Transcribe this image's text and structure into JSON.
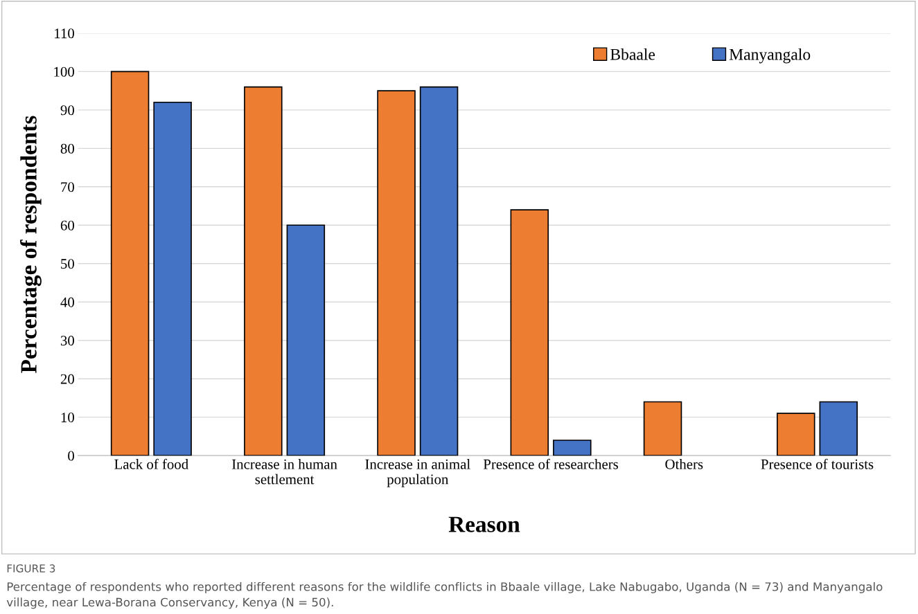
{
  "chart_data": {
    "type": "bar",
    "xlabel": "Reason",
    "ylabel": "Percentage of respondents",
    "categories": [
      "Lack of food",
      "Increase in human\nsettlement",
      "Increase in animal\npopulation",
      "Presence of researchers",
      "Others",
      "Presence of tourists"
    ],
    "series": [
      {
        "name": "Bbaale",
        "color": "#ed7d31",
        "values": [
          100,
          96,
          95,
          64,
          14,
          11
        ]
      },
      {
        "name": "Manyangalo",
        "color": "#4472c4",
        "values": [
          92,
          60,
          96,
          4,
          null,
          14
        ]
      }
    ],
    "ylim": [
      0,
      110
    ],
    "yticks": [
      0,
      10,
      20,
      30,
      40,
      50,
      60,
      70,
      80,
      90,
      100,
      110
    ],
    "grid": "y",
    "legend": "top right",
    "annotations": [
      "FIGURE 3",
      "Percentage of respondents who reported different reasons for the wildlife conflicts in Bbaale village, Lake Nabugabo, Uganda (N = 73) and Manyangalo village, near Lewa-Borana Conservancy, Kenya (N = 50)."
    ]
  }
}
